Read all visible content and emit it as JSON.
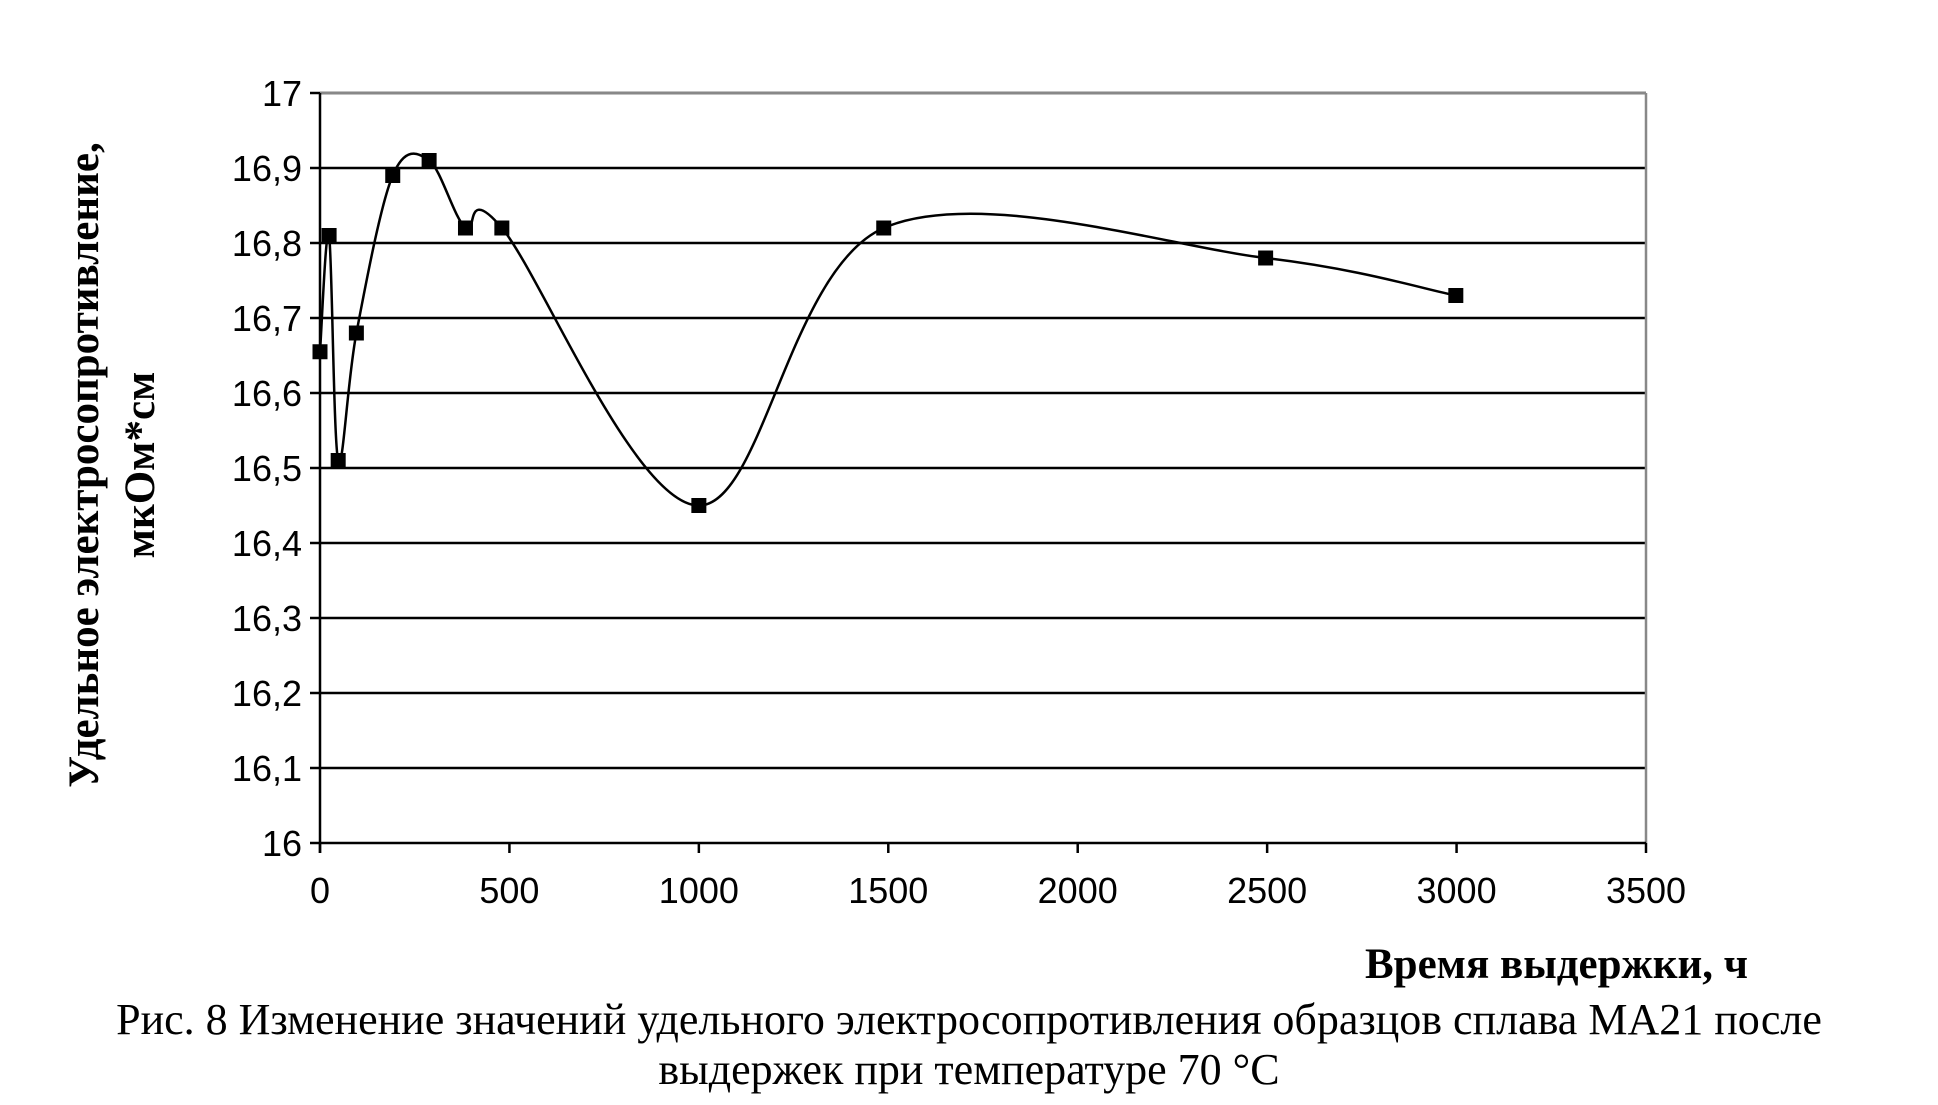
{
  "chart_data": {
    "type": "line",
    "xlabel": "Время выдержки, ч",
    "ylabel_line1": "Удельное электросопротивление,",
    "ylabel_line2": "мкОм*см",
    "xlim": [
      0,
      3500
    ],
    "ylim": [
      16,
      17
    ],
    "xticks": [
      "0",
      "500",
      "1000",
      "1500",
      "2000",
      "2500",
      "3000",
      "3500"
    ],
    "yticks": [
      "16",
      "16,1",
      "16,2",
      "16,3",
      "16,4",
      "16,5",
      "16,6",
      "16,7",
      "16,8",
      "16,9",
      "17"
    ],
    "grid": "horizontal",
    "smooth": true,
    "marker": "square",
    "series": [
      {
        "x": [
          0,
          24,
          48,
          96,
          192,
          288,
          384,
          480,
          1000,
          1488,
          2496,
          2998
        ],
        "y": [
          16.655,
          16.81,
          16.51,
          16.68,
          16.89,
          16.91,
          16.82,
          16.82,
          16.45,
          16.82,
          16.78,
          16.73
        ]
      }
    ]
  },
  "caption_line1": "Рис. 8 Изменение значений удельного электросопротивления образцов сплава МА21 после",
  "caption_line2": "выдержек при температуре 70 °С"
}
